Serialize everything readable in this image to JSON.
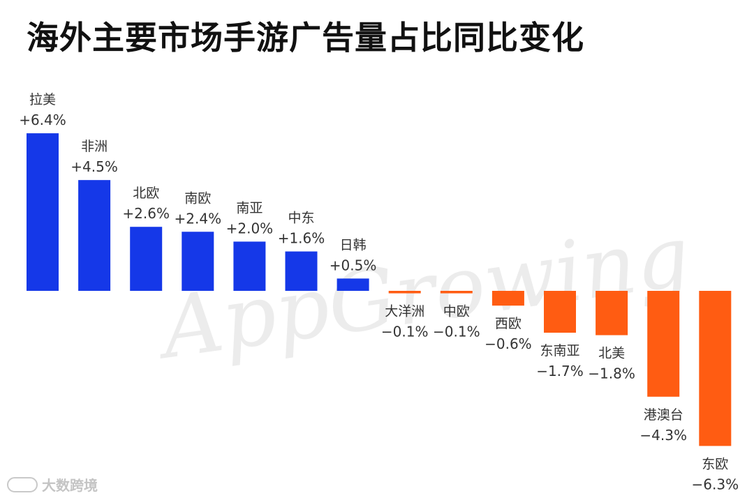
{
  "title": "海外主要市场手游广告量占比同比变化",
  "watermark": "AppGrowing",
  "footer_logo": "大数跨境",
  "colors": {
    "positive": "#1538E8",
    "negative": "#FF5C12",
    "label": "#333333"
  },
  "chart_data": {
    "type": "bar",
    "title": "海外主要市场手游广告量占比同比变化",
    "unit": "%",
    "categories": [
      "拉美",
      "非洲",
      "北欧",
      "南欧",
      "南亚",
      "中东",
      "日韩",
      "大洋洲",
      "中欧",
      "西欧",
      "东南亚",
      "北美",
      "港澳台",
      "东欧"
    ],
    "values": [
      6.4,
      4.5,
      2.6,
      2.4,
      2.0,
      1.6,
      0.5,
      -0.1,
      -0.1,
      -0.6,
      -1.7,
      -1.8,
      -4.3,
      -6.3
    ],
    "value_labels": [
      "+6.4%",
      "+4.5%",
      "+2.6%",
      "+2.4%",
      "+2.0%",
      "+1.6%",
      "+0.5%",
      "−0.1%",
      "−0.1%",
      "−0.6%",
      "−1.7%",
      "−1.8%",
      "−4.3%",
      "−6.3%"
    ],
    "ylim": [
      -6.3,
      6.4
    ],
    "grid": false,
    "legend": "none"
  }
}
